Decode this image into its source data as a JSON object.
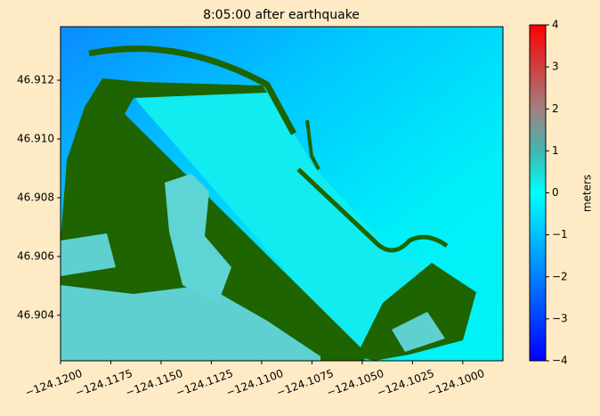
{
  "chart_data": {
    "type": "heatmap",
    "title": "8:05:00 after earthquake",
    "xlim": [
      -124.12,
      -124.098
    ],
    "xticks": [
      {
        "value": -124.12,
        "label": "−124.1200"
      },
      {
        "value": -124.1175,
        "label": "−124.1175"
      },
      {
        "value": -124.115,
        "label": "−124.1150"
      },
      {
        "value": -124.1125,
        "label": "−124.1125"
      },
      {
        "value": -124.11,
        "label": "−124.1100"
      },
      {
        "value": -124.1075,
        "label": "−124.1075"
      },
      {
        "value": -124.105,
        "label": "−124.1050"
      },
      {
        "value": -124.1025,
        "label": "−124.1025"
      },
      {
        "value": -124.1,
        "label": "−124.1000"
      }
    ],
    "ylim": [
      46.90245,
      46.91382
    ],
    "yticks": [
      46.904,
      46.906,
      46.908,
      {
        "value": 46.91,
        "label": "46.910"
      },
      46.912
    ],
    "colorbar": {
      "label": "meters",
      "lim": [
        -4,
        4
      ],
      "ticks": [
        {
          "value": -4,
          "label": "−4"
        },
        {
          "value": -3,
          "label": "−3"
        },
        {
          "value": -2,
          "label": "−2"
        },
        {
          "value": -1,
          "label": "−1"
        },
        0,
        1,
        2,
        3,
        4
      ]
    }
  }
}
